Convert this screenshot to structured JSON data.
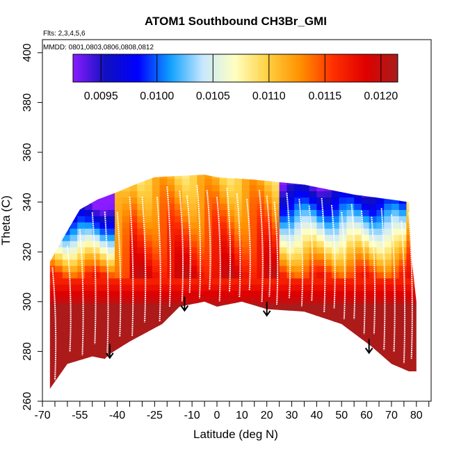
{
  "chart_data": {
    "type": "heatmap",
    "title": "ATOM1 Southbound CH3Br_GMI",
    "subtitle_flights": "Flts: 2,3,4,5,6",
    "subtitle_dates": "MMDD: 0801,0803,0806,0808,0812",
    "xlabel": "Latitude (deg N)",
    "ylabel": "Theta (C)",
    "xlim": [
      -70,
      86
    ],
    "ylim": [
      260,
      404
    ],
    "x_tick_labels": [
      "-70",
      "-55",
      "-40",
      "-25",
      "-10",
      "0",
      "10",
      "20",
      "30",
      "40",
      "50",
      "60",
      "70",
      "80"
    ],
    "y_tick_labels": [
      "260",
      "280",
      "300",
      "320",
      "340",
      "360",
      "380",
      "400"
    ],
    "colorbar": {
      "vmin": 0.00925,
      "vmax": 0.01215,
      "tick_labels": [
        "0.0095",
        "0.0100",
        "0.0105",
        "0.0110",
        "0.0115",
        "0.0120"
      ],
      "tick_values": [
        0.0095,
        0.01,
        0.0105,
        0.011,
        0.0115,
        0.012
      ],
      "colors": [
        "#8b1cff",
        "#1010c0",
        "#0000ff",
        "#10a0ff",
        "#c8e8ff",
        "#ffffc0",
        "#ffd040",
        "#ff9000",
        "#ff3000",
        "#e00000",
        "#a81c1c"
      ]
    },
    "lower_boundary_theta": [
      {
        "lat": -67,
        "theta": 265
      },
      {
        "lat": -60,
        "theta": 275
      },
      {
        "lat": -50,
        "theta": 278
      },
      {
        "lat": -45,
        "theta": 277
      },
      {
        "lat": -43,
        "theta": 279
      },
      {
        "lat": -35,
        "theta": 284
      },
      {
        "lat": -22,
        "theta": 291
      },
      {
        "lat": -15,
        "theta": 298
      },
      {
        "lat": -5,
        "theta": 300
      },
      {
        "lat": 0,
        "theta": 298
      },
      {
        "lat": 10,
        "theta": 300
      },
      {
        "lat": 20,
        "theta": 297
      },
      {
        "lat": 35,
        "theta": 296
      },
      {
        "lat": 50,
        "theta": 291
      },
      {
        "lat": 62,
        "theta": 282
      },
      {
        "lat": 70,
        "theta": 275
      },
      {
        "lat": 77,
        "theta": 272
      },
      {
        "lat": 80,
        "theta": 272
      }
    ],
    "upper_boundary_theta": [
      {
        "lat": -67,
        "theta": 316
      },
      {
        "lat": -62,
        "theta": 325
      },
      {
        "lat": -55,
        "theta": 337
      },
      {
        "lat": -48,
        "theta": 341
      },
      {
        "lat": -40,
        "theta": 344
      },
      {
        "lat": -33,
        "theta": 347
      },
      {
        "lat": -25,
        "theta": 350
      },
      {
        "lat": -5,
        "theta": 351
      },
      {
        "lat": 0,
        "theta": 350
      },
      {
        "lat": 15,
        "theta": 349
      },
      {
        "lat": 35,
        "theta": 347
      },
      {
        "lat": 55,
        "theta": 343
      },
      {
        "lat": 70,
        "theta": 341
      },
      {
        "lat": 77,
        "theta": 340
      },
      {
        "lat": 78,
        "theta": 318
      },
      {
        "lat": 80,
        "theta": 300
      }
    ],
    "arrow_markers_lat": [
      -43,
      -13,
      20,
      61
    ],
    "arrow_markers_theta": [
      283,
      302,
      300,
      285
    ]
  }
}
